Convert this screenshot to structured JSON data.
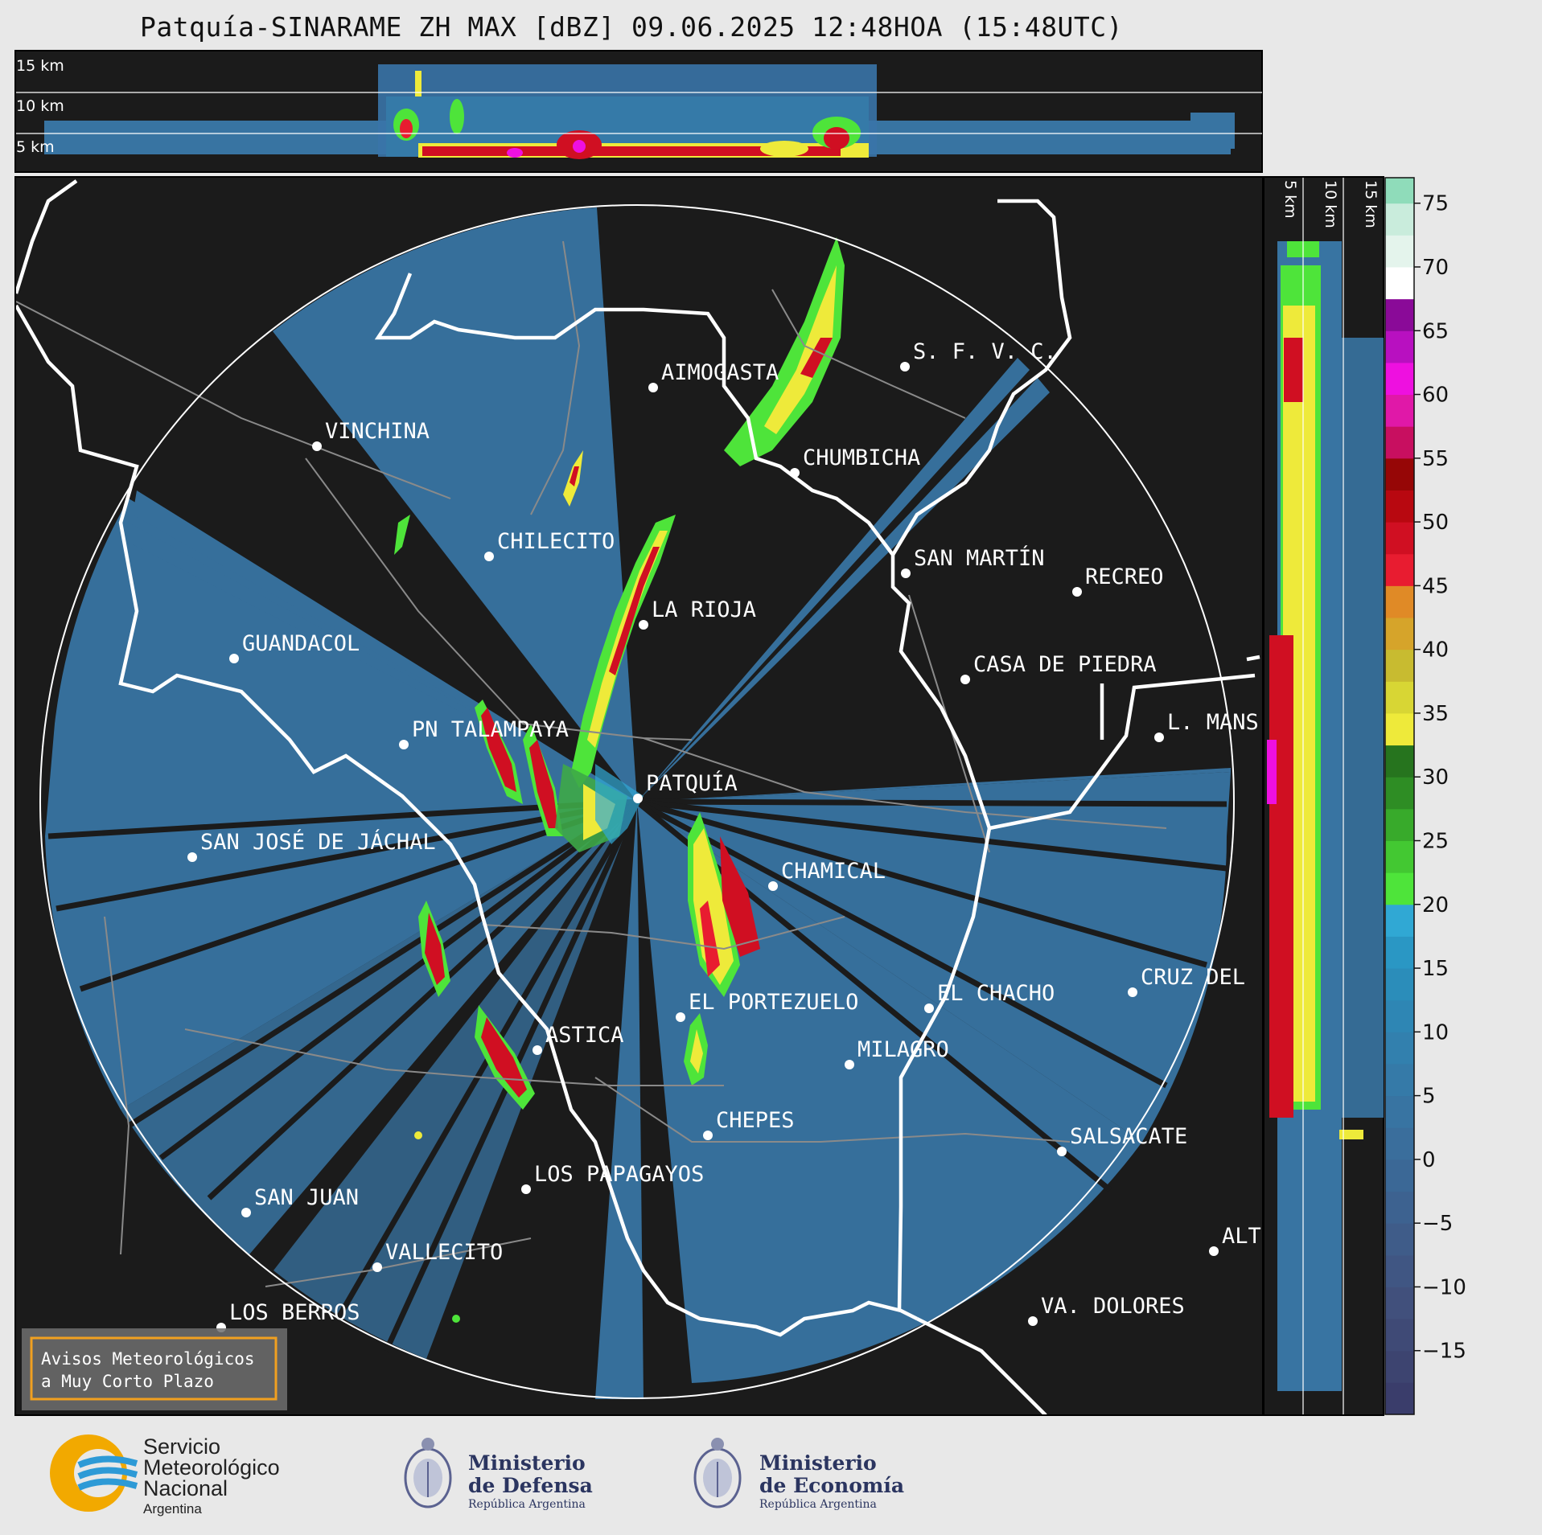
{
  "title": "Patquía-SINARAME ZH MAX [dBZ] 09.06.2025 12:48HOA (15:48UTC)",
  "top_panel": {
    "altitude_labels": [
      "15 km",
      "10 km",
      "5 km"
    ]
  },
  "side_panel": {
    "altitude_labels": [
      "5 km",
      "10 km",
      "15 km"
    ]
  },
  "cities": [
    {
      "name": "AIMOGASTA"
    },
    {
      "name": "S. F. V. C."
    },
    {
      "name": "VINCHINA"
    },
    {
      "name": "CHUMBICHA"
    },
    {
      "name": "CHILECITO"
    },
    {
      "name": "SAN MARTÍN"
    },
    {
      "name": "RECREO"
    },
    {
      "name": "LA RIOJA"
    },
    {
      "name": "GUANDACOL"
    },
    {
      "name": "CASA DE PIEDRA"
    },
    {
      "name": "L. MANS"
    },
    {
      "name": "PN TALAMPAYA"
    },
    {
      "name": "PATQUÍA"
    },
    {
      "name": "SAN JOSÉ DE JÁCHAL"
    },
    {
      "name": "CHAMICAL"
    },
    {
      "name": "CRUZ DEL"
    },
    {
      "name": "EL CHACHO"
    },
    {
      "name": "EL PORTEZUELO"
    },
    {
      "name": "ASTICA"
    },
    {
      "name": "MILAGRO"
    },
    {
      "name": "CHEPES"
    },
    {
      "name": "SALSACATE"
    },
    {
      "name": "LOS PAPAGAYOS"
    },
    {
      "name": "SAN JUAN"
    },
    {
      "name": "VALLECITO"
    },
    {
      "name": "ALT"
    },
    {
      "name": "LOS BERROS"
    },
    {
      "name": "VA. DOLORES"
    }
  ],
  "colorbar": {
    "unit": "dBZ",
    "ticks": [
      "75",
      "70",
      "65",
      "60",
      "55",
      "50",
      "45",
      "40",
      "35",
      "30",
      "25",
      "20",
      "15",
      "10",
      "5",
      "0",
      "−5",
      "−10",
      "−15"
    ],
    "range": [
      -20,
      77
    ],
    "segments": [
      {
        "from": -20,
        "to": -17.5,
        "color": "#3a3d6b"
      },
      {
        "from": -17.5,
        "to": -15,
        "color": "#3d4470"
      },
      {
        "from": -15,
        "to": -12.5,
        "color": "#3f4a76"
      },
      {
        "from": -12.5,
        "to": -10,
        "color": "#41507c"
      },
      {
        "from": -10,
        "to": -7.5,
        "color": "#405683"
      },
      {
        "from": -7.5,
        "to": -5,
        "color": "#3f5c89"
      },
      {
        "from": -5,
        "to": -2.5,
        "color": "#3d6290"
      },
      {
        "from": -2.5,
        "to": 0,
        "color": "#3b6896"
      },
      {
        "from": 0,
        "to": 2.5,
        "color": "#3a6e9c"
      },
      {
        "from": 2.5,
        "to": 5,
        "color": "#3874a2"
      },
      {
        "from": 5,
        "to": 7.5,
        "color": "#357aa8"
      },
      {
        "from": 7.5,
        "to": 10,
        "color": "#3280ae"
      },
      {
        "from": 10,
        "to": 12.5,
        "color": "#2e86b4"
      },
      {
        "from": 12.5,
        "to": 15,
        "color": "#2b8dba"
      },
      {
        "from": 15,
        "to": 17.5,
        "color": "#2a97c4"
      },
      {
        "from": 17.5,
        "to": 20,
        "color": "#30a8d4"
      },
      {
        "from": 20,
        "to": 22.5,
        "color": "#4ee43a"
      },
      {
        "from": 22.5,
        "to": 25,
        "color": "#43c832"
      },
      {
        "from": 25,
        "to": 27.5,
        "color": "#38aa2b"
      },
      {
        "from": 27.5,
        "to": 30,
        "color": "#2e8d24"
      },
      {
        "from": 30,
        "to": 32.5,
        "color": "#26741e"
      },
      {
        "from": 32.5,
        "to": 35,
        "color": "#eeea3a"
      },
      {
        "from": 35,
        "to": 37.5,
        "color": "#d8d634"
      },
      {
        "from": 37.5,
        "to": 40,
        "color": "#c8bb30"
      },
      {
        "from": 40,
        "to": 42.5,
        "color": "#d6a42a"
      },
      {
        "from": 42.5,
        "to": 45,
        "color": "#e08a26"
      },
      {
        "from": 45,
        "to": 47.5,
        "color": "#e81c30"
      },
      {
        "from": 47.5,
        "to": 50,
        "color": "#d00f22"
      },
      {
        "from": 50,
        "to": 52.5,
        "color": "#b80810"
      },
      {
        "from": 52.5,
        "to": 55,
        "color": "#960606"
      },
      {
        "from": 55,
        "to": 57.5,
        "color": "#c80f60"
      },
      {
        "from": 57.5,
        "to": 60,
        "color": "#e018a8"
      },
      {
        "from": 60,
        "to": 62.5,
        "color": "#ee10e0"
      },
      {
        "from": 62.5,
        "to": 65,
        "color": "#b810c0"
      },
      {
        "from": 65,
        "to": 67.5,
        "color": "#8a0a98"
      },
      {
        "from": 67.5,
        "to": 70,
        "color": "#ffffff"
      },
      {
        "from": 70,
        "to": 72.5,
        "color": "#e4f4ec"
      },
      {
        "from": 72.5,
        "to": 75,
        "color": "#c9ecdc"
      },
      {
        "from": 75,
        "to": 77,
        "color": "#8fdcba"
      }
    ]
  },
  "notice": {
    "line1": "Avisos Meteorológicos",
    "line2": "a Muy Corto Plazo"
  },
  "logos": {
    "smn": [
      "Servicio",
      "Meteorológico",
      "Nacional",
      "Argentina"
    ],
    "defensa": [
      "Ministerio",
      "de Defensa",
      "República Argentina"
    ],
    "economia": [
      "Ministerio",
      "de Economía",
      "República Argentina"
    ]
  },
  "colors": {
    "map_bg": "#1b1b1b",
    "page_bg": "#e8e8e8",
    "radar_base": "#3a6fa6",
    "notice_border": "#f0a020"
  }
}
